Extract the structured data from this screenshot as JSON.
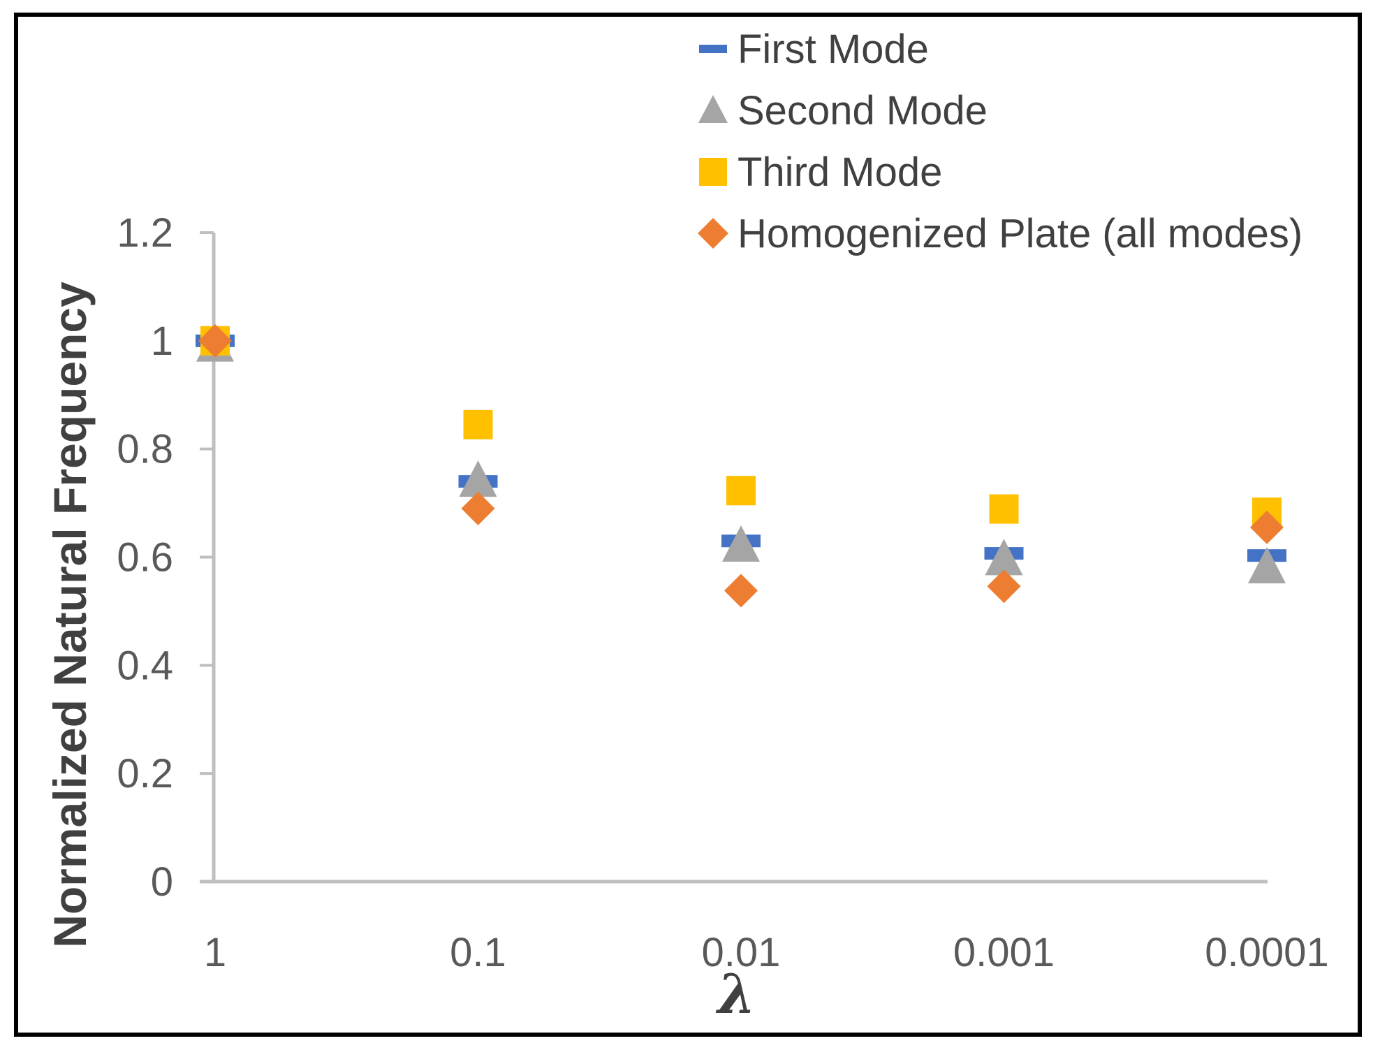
{
  "chart_data": {
    "type": "scatter",
    "title": "",
    "xlabel": "λ",
    "ylabel": "Normalized Natural Frequency",
    "ylim": [
      0,
      1.2
    ],
    "yticks": [
      "0",
      "0.2",
      "0.4",
      "0.6",
      "0.8",
      "1",
      "1.2"
    ],
    "categories": [
      "1",
      "0.1",
      "0.01",
      "0.001",
      "0.0001"
    ],
    "grid": false,
    "legend_position": "top-right",
    "series": [
      {
        "name": "First Mode",
        "marker": "dash",
        "color": "#4472C4",
        "values": [
          1.0,
          0.74,
          0.63,
          0.607,
          0.603
        ]
      },
      {
        "name": "Second Mode",
        "marker": "triangle",
        "color": "#A5A5A5",
        "values": [
          0.99,
          0.74,
          0.62,
          0.595,
          0.58
        ]
      },
      {
        "name": "Third Mode",
        "marker": "square",
        "color": "#FFC000",
        "values": [
          1.0,
          0.845,
          0.723,
          0.689,
          0.683
        ]
      },
      {
        "name": "Homogenized Plate (all modes)",
        "marker": "diamond",
        "color": "#ED7D31",
        "values": [
          1.0,
          0.69,
          0.538,
          0.546,
          0.655
        ]
      }
    ]
  }
}
